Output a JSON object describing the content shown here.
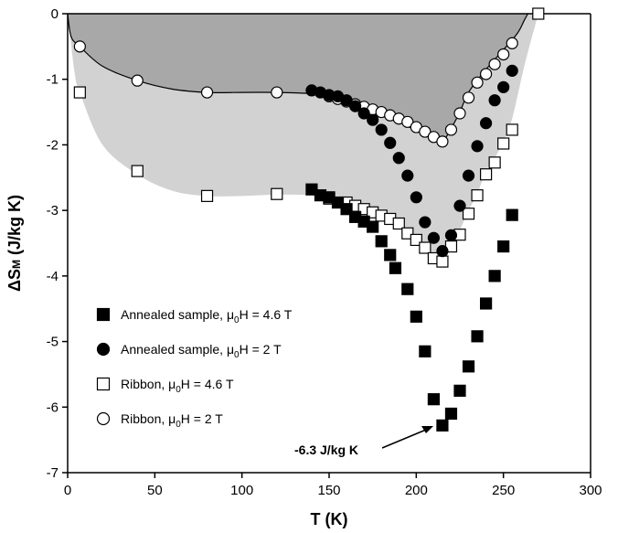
{
  "chart_data": {
    "type": "scatter",
    "xlabel": "T (K)",
    "ylabel": "ΔS",
    "ylabel_sub": "M",
    "ylabel_unit": " (J/kg K)",
    "xlim": [
      0,
      300
    ],
    "ylim": [
      -7,
      0
    ],
    "x_ticks": [
      "0",
      "50",
      "100",
      "150",
      "200",
      "250",
      "300"
    ],
    "y_ticks": [
      "0",
      "-1",
      "-2",
      "-3",
      "-4",
      "-5",
      "-6",
      "-7"
    ],
    "grid": false,
    "legend_position": "lower-left",
    "colors": {
      "dark_region": "#a8a8a8",
      "light_region": "#d2d2d2",
      "marker_fill_black": "#000000",
      "marker_fill_white": "#ffffff"
    },
    "annotation": {
      "text": "-6.3 J/kg K",
      "x": 215,
      "y": -6.3
    },
    "regions": {
      "ribbon_2T_envelope": [
        [
          0,
          0
        ],
        [
          2,
          -0.35
        ],
        [
          7,
          -0.5
        ],
        [
          20,
          -0.8
        ],
        [
          40,
          -1.02
        ],
        [
          60,
          -1.15
        ],
        [
          80,
          -1.2
        ],
        [
          100,
          -1.2
        ],
        [
          120,
          -1.2
        ],
        [
          140,
          -1.22
        ],
        [
          150,
          -1.26
        ],
        [
          160,
          -1.35
        ],
        [
          170,
          -1.45
        ],
        [
          180,
          -1.55
        ],
        [
          190,
          -1.65
        ],
        [
          200,
          -1.78
        ],
        [
          210,
          -1.9
        ],
        [
          215,
          -1.95
        ],
        [
          220,
          -1.75
        ],
        [
          225,
          -1.5
        ],
        [
          230,
          -1.2
        ],
        [
          240,
          -0.85
        ],
        [
          250,
          -0.55
        ],
        [
          258,
          -0.3
        ],
        [
          262,
          -0.1
        ],
        [
          264,
          0
        ]
      ],
      "ribbon_4_6T_envelope": [
        [
          0,
          0
        ],
        [
          4,
          -0.9
        ],
        [
          7,
          -1.2
        ],
        [
          20,
          -2.0
        ],
        [
          40,
          -2.45
        ],
        [
          60,
          -2.7
        ],
        [
          80,
          -2.78
        ],
        [
          100,
          -2.78
        ],
        [
          120,
          -2.76
        ],
        [
          140,
          -2.77
        ],
        [
          150,
          -2.82
        ],
        [
          160,
          -2.9
        ],
        [
          170,
          -3.0
        ],
        [
          180,
          -3.1
        ],
        [
          190,
          -3.25
        ],
        [
          200,
          -3.45
        ],
        [
          210,
          -3.7
        ],
        [
          215,
          -3.78
        ],
        [
          220,
          -3.55
        ],
        [
          225,
          -3.3
        ],
        [
          230,
          -3.0
        ],
        [
          235,
          -2.75
        ],
        [
          240,
          -2.4
        ],
        [
          245,
          -2.2
        ],
        [
          250,
          -1.95
        ],
        [
          255,
          -1.6
        ],
        [
          262,
          -0.8
        ],
        [
          268,
          -0.2
        ],
        [
          270,
          0
        ]
      ]
    },
    "series": [
      {
        "name": "Annealed sample, μ0H = 4.6 T",
        "legend_main": "Annealed sample, μ",
        "legend_sub": "0",
        "legend_tail": "H = 4.6 T",
        "marker": "square",
        "fill": "#000000",
        "points": [
          [
            140,
            -2.68
          ],
          [
            145,
            -2.77
          ],
          [
            150,
            -2.8
          ],
          [
            155,
            -2.88
          ],
          [
            160,
            -2.98
          ],
          [
            165,
            -3.1
          ],
          [
            170,
            -3.17
          ],
          [
            175,
            -3.25
          ],
          [
            180,
            -3.47
          ],
          [
            185,
            -3.68
          ],
          [
            188,
            -3.88
          ],
          [
            195,
            -4.2
          ],
          [
            200,
            -4.62
          ],
          [
            205,
            -5.15
          ],
          [
            210,
            -5.88
          ],
          [
            215,
            -6.28
          ],
          [
            220,
            -6.1
          ],
          [
            225,
            -5.75
          ],
          [
            230,
            -5.38
          ],
          [
            235,
            -4.92
          ],
          [
            240,
            -4.42
          ],
          [
            245,
            -4.0
          ],
          [
            250,
            -3.55
          ],
          [
            255,
            -3.07
          ]
        ]
      },
      {
        "name": "Annealed sample, μ0H = 2 T",
        "legend_main": "Annealed sample, μ",
        "legend_sub": "0",
        "legend_tail": "H = 2 T",
        "marker": "circle",
        "fill": "#000000",
        "points": [
          [
            140,
            -1.17
          ],
          [
            145,
            -1.2
          ],
          [
            150,
            -1.24
          ],
          [
            155,
            -1.26
          ],
          [
            160,
            -1.32
          ],
          [
            165,
            -1.41
          ],
          [
            170,
            -1.52
          ],
          [
            175,
            -1.62
          ],
          [
            180,
            -1.77
          ],
          [
            185,
            -1.97
          ],
          [
            190,
            -2.2
          ],
          [
            195,
            -2.47
          ],
          [
            200,
            -2.8
          ],
          [
            205,
            -3.18
          ],
          [
            210,
            -3.42
          ],
          [
            215,
            -3.62
          ],
          [
            220,
            -3.38
          ],
          [
            225,
            -2.93
          ],
          [
            230,
            -2.47
          ],
          [
            235,
            -2.02
          ],
          [
            240,
            -1.67
          ],
          [
            245,
            -1.32
          ],
          [
            250,
            -1.12
          ],
          [
            255,
            -0.87
          ]
        ]
      },
      {
        "name": "Ribbon, μ0H = 4.6 T",
        "legend_main": "Ribbon, μ",
        "legend_sub": "0",
        "legend_tail": "H = 4.6 T",
        "marker": "square",
        "fill": "#ffffff",
        "points": [
          [
            7,
            -1.2
          ],
          [
            40,
            -2.4
          ],
          [
            80,
            -2.78
          ],
          [
            120,
            -2.75
          ],
          [
            150,
            -2.82
          ],
          [
            160,
            -2.88
          ],
          [
            165,
            -2.93
          ],
          [
            170,
            -2.98
          ],
          [
            175,
            -3.03
          ],
          [
            180,
            -3.08
          ],
          [
            185,
            -3.13
          ],
          [
            190,
            -3.2
          ],
          [
            195,
            -3.35
          ],
          [
            200,
            -3.45
          ],
          [
            205,
            -3.57
          ],
          [
            210,
            -3.73
          ],
          [
            215,
            -3.78
          ],
          [
            220,
            -3.55
          ],
          [
            225,
            -3.37
          ],
          [
            230,
            -3.05
          ],
          [
            235,
            -2.77
          ],
          [
            240,
            -2.45
          ],
          [
            245,
            -2.27
          ],
          [
            250,
            -1.98
          ],
          [
            255,
            -1.77
          ],
          [
            270,
            0
          ]
        ]
      },
      {
        "name": "Ribbon, μ0H = 2 T",
        "legend_main": "Ribbon, μ",
        "legend_sub": "0",
        "legend_tail": "H = 2 T",
        "marker": "circle",
        "fill": "#ffffff",
        "points": [
          [
            7,
            -0.5
          ],
          [
            40,
            -1.02
          ],
          [
            80,
            -1.2
          ],
          [
            120,
            -1.2
          ],
          [
            150,
            -1.26
          ],
          [
            155,
            -1.3
          ],
          [
            160,
            -1.34
          ],
          [
            165,
            -1.38
          ],
          [
            170,
            -1.42
          ],
          [
            175,
            -1.46
          ],
          [
            180,
            -1.5
          ],
          [
            185,
            -1.55
          ],
          [
            190,
            -1.6
          ],
          [
            195,
            -1.65
          ],
          [
            200,
            -1.73
          ],
          [
            205,
            -1.8
          ],
          [
            210,
            -1.88
          ],
          [
            215,
            -1.95
          ],
          [
            220,
            -1.77
          ],
          [
            225,
            -1.52
          ],
          [
            230,
            -1.28
          ],
          [
            235,
            -1.05
          ],
          [
            240,
            -0.92
          ],
          [
            245,
            -0.77
          ],
          [
            250,
            -0.62
          ],
          [
            255,
            -0.45
          ]
        ]
      }
    ]
  }
}
